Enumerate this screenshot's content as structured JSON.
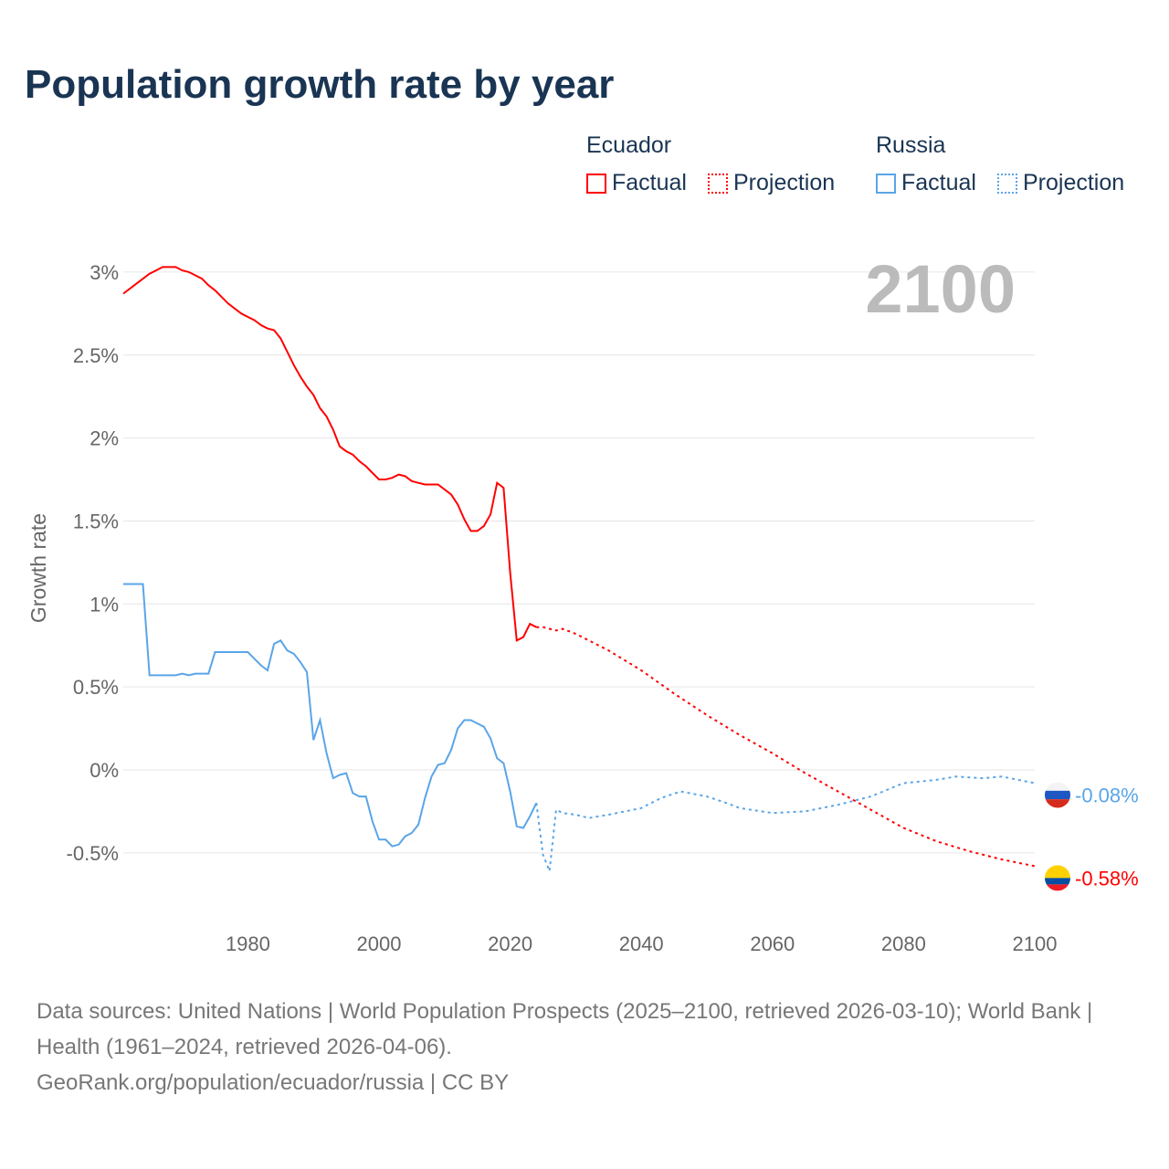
{
  "title": "Population growth rate by year",
  "legend": {
    "groups": [
      {
        "name": "Ecuador",
        "color": "#ff0000",
        "factual": "Factual",
        "projection": "Projection"
      },
      {
        "name": "Russia",
        "color": "#5aa5e8",
        "factual": "Factual",
        "projection": "Projection"
      }
    ]
  },
  "year_label": "2100",
  "footer": {
    "sources": "Data sources: United Nations | World Population Prospects (2025–2100, retrieved 2026-03-10); World Bank | Health (1961–2024, retrieved 2026-04-06).",
    "credit": "GeoRank.org/population/ecuador/russia | CC BY"
  },
  "chart_data": {
    "type": "line",
    "title": "Population growth rate by year",
    "xlabel": "",
    "ylabel": "Growth rate",
    "xlim": [
      1961,
      2100
    ],
    "ylim": [
      -0.75,
      3.2
    ],
    "xticks": [
      1980,
      2000,
      2020,
      2040,
      2060,
      2080,
      2100
    ],
    "yticks": [
      -0.5,
      0,
      0.5,
      1,
      1.5,
      2,
      2.5,
      3
    ],
    "ytick_labels": [
      "-0.5%",
      "0%",
      "0.5%",
      "1%",
      "1.5%",
      "2%",
      "2.5%",
      "3%"
    ],
    "grid": true,
    "series": [
      {
        "name": "Ecuador",
        "color": "#ff0000",
        "end_label": "-0.58%",
        "factual": [
          [
            1961,
            2.87
          ],
          [
            1962,
            2.9
          ],
          [
            1963,
            2.93
          ],
          [
            1964,
            2.96
          ],
          [
            1965,
            2.99
          ],
          [
            1966,
            3.01
          ],
          [
            1967,
            3.03
          ],
          [
            1968,
            3.03
          ],
          [
            1969,
            3.03
          ],
          [
            1970,
            3.01
          ],
          [
            1971,
            3.0
          ],
          [
            1972,
            2.98
          ],
          [
            1973,
            2.96
          ],
          [
            1974,
            2.92
          ],
          [
            1975,
            2.89
          ],
          [
            1976,
            2.85
          ],
          [
            1977,
            2.81
          ],
          [
            1978,
            2.78
          ],
          [
            1979,
            2.75
          ],
          [
            1980,
            2.73
          ],
          [
            1981,
            2.71
          ],
          [
            1982,
            2.68
          ],
          [
            1983,
            2.66
          ],
          [
            1984,
            2.65
          ],
          [
            1985,
            2.6
          ],
          [
            1986,
            2.52
          ],
          [
            1987,
            2.44
          ],
          [
            1988,
            2.37
          ],
          [
            1989,
            2.31
          ],
          [
            1990,
            2.26
          ],
          [
            1991,
            2.18
          ],
          [
            1992,
            2.13
          ],
          [
            1993,
            2.05
          ],
          [
            1994,
            1.95
          ],
          [
            1995,
            1.92
          ],
          [
            1996,
            1.9
          ],
          [
            1997,
            1.86
          ],
          [
            1998,
            1.83
          ],
          [
            1999,
            1.79
          ],
          [
            2000,
            1.75
          ],
          [
            2001,
            1.75
          ],
          [
            2002,
            1.76
          ],
          [
            2003,
            1.78
          ],
          [
            2004,
            1.77
          ],
          [
            2005,
            1.74
          ],
          [
            2006,
            1.73
          ],
          [
            2007,
            1.72
          ],
          [
            2008,
            1.72
          ],
          [
            2009,
            1.72
          ],
          [
            2010,
            1.69
          ],
          [
            2011,
            1.66
          ],
          [
            2012,
            1.6
          ],
          [
            2013,
            1.51
          ],
          [
            2014,
            1.44
          ],
          [
            2015,
            1.44
          ],
          [
            2016,
            1.47
          ],
          [
            2017,
            1.54
          ],
          [
            2018,
            1.73
          ],
          [
            2019,
            1.7
          ],
          [
            2020,
            1.19
          ],
          [
            2021,
            0.78
          ],
          [
            2022,
            0.8
          ],
          [
            2023,
            0.88
          ],
          [
            2024,
            0.86
          ]
        ],
        "projection": [
          [
            2024,
            0.86
          ],
          [
            2025,
            0.86
          ],
          [
            2027,
            0.84
          ],
          [
            2028,
            0.85
          ],
          [
            2030,
            0.82
          ],
          [
            2035,
            0.72
          ],
          [
            2040,
            0.6
          ],
          [
            2045,
            0.46
          ],
          [
            2050,
            0.33
          ],
          [
            2055,
            0.21
          ],
          [
            2060,
            0.1
          ],
          [
            2065,
            -0.02
          ],
          [
            2070,
            -0.13
          ],
          [
            2075,
            -0.24
          ],
          [
            2080,
            -0.35
          ],
          [
            2085,
            -0.43
          ],
          [
            2090,
            -0.49
          ],
          [
            2095,
            -0.54
          ],
          [
            2100,
            -0.58
          ]
        ]
      },
      {
        "name": "Russia",
        "color": "#5aa5e8",
        "end_label": "-0.08%",
        "factual": [
          [
            1961,
            1.12
          ],
          [
            1962,
            1.12
          ],
          [
            1963,
            1.12
          ],
          [
            1964,
            1.12
          ],
          [
            1965,
            0.57
          ],
          [
            1966,
            0.57
          ],
          [
            1967,
            0.57
          ],
          [
            1968,
            0.57
          ],
          [
            1969,
            0.57
          ],
          [
            1970,
            0.58
          ],
          [
            1971,
            0.57
          ],
          [
            1972,
            0.58
          ],
          [
            1973,
            0.58
          ],
          [
            1974,
            0.58
          ],
          [
            1975,
            0.71
          ],
          [
            1976,
            0.71
          ],
          [
            1977,
            0.71
          ],
          [
            1978,
            0.71
          ],
          [
            1979,
            0.71
          ],
          [
            1980,
            0.71
          ],
          [
            1981,
            0.67
          ],
          [
            1982,
            0.63
          ],
          [
            1983,
            0.6
          ],
          [
            1984,
            0.76
          ],
          [
            1985,
            0.78
          ],
          [
            1986,
            0.72
          ],
          [
            1987,
            0.7
          ],
          [
            1988,
            0.65
          ],
          [
            1989,
            0.59
          ],
          [
            1990,
            0.18
          ],
          [
            1991,
            0.3
          ],
          [
            1992,
            0.1
          ],
          [
            1993,
            -0.05
          ],
          [
            1994,
            -0.03
          ],
          [
            1995,
            -0.02
          ],
          [
            1996,
            -0.14
          ],
          [
            1997,
            -0.16
          ],
          [
            1998,
            -0.16
          ],
          [
            1999,
            -0.31
          ],
          [
            2000,
            -0.42
          ],
          [
            2001,
            -0.42
          ],
          [
            2002,
            -0.46
          ],
          [
            2003,
            -0.45
          ],
          [
            2004,
            -0.4
          ],
          [
            2005,
            -0.38
          ],
          [
            2006,
            -0.33
          ],
          [
            2007,
            -0.17
          ],
          [
            2008,
            -0.04
          ],
          [
            2009,
            0.03
          ],
          [
            2010,
            0.04
          ],
          [
            2011,
            0.12
          ],
          [
            2012,
            0.25
          ],
          [
            2013,
            0.3
          ],
          [
            2014,
            0.3
          ],
          [
            2015,
            0.28
          ],
          [
            2016,
            0.26
          ],
          [
            2017,
            0.19
          ],
          [
            2018,
            0.07
          ],
          [
            2019,
            0.04
          ],
          [
            2020,
            -0.13
          ],
          [
            2021,
            -0.34
          ],
          [
            2022,
            -0.35
          ],
          [
            2023,
            -0.28
          ],
          [
            2024,
            -0.2
          ]
        ],
        "projection": [
          [
            2024,
            -0.2
          ],
          [
            2025,
            -0.51
          ],
          [
            2026,
            -0.61
          ],
          [
            2027,
            -0.24
          ],
          [
            2028,
            -0.26
          ],
          [
            2030,
            -0.27
          ],
          [
            2032,
            -0.29
          ],
          [
            2035,
            -0.27
          ],
          [
            2040,
            -0.23
          ],
          [
            2043,
            -0.17
          ],
          [
            2046,
            -0.13
          ],
          [
            2050,
            -0.16
          ],
          [
            2053,
            -0.2
          ],
          [
            2055,
            -0.23
          ],
          [
            2060,
            -0.26
          ],
          [
            2065,
            -0.25
          ],
          [
            2070,
            -0.21
          ],
          [
            2075,
            -0.16
          ],
          [
            2080,
            -0.08
          ],
          [
            2085,
            -0.06
          ],
          [
            2088,
            -0.04
          ],
          [
            2092,
            -0.05
          ],
          [
            2095,
            -0.04
          ],
          [
            2100,
            -0.08
          ]
        ]
      }
    ]
  }
}
